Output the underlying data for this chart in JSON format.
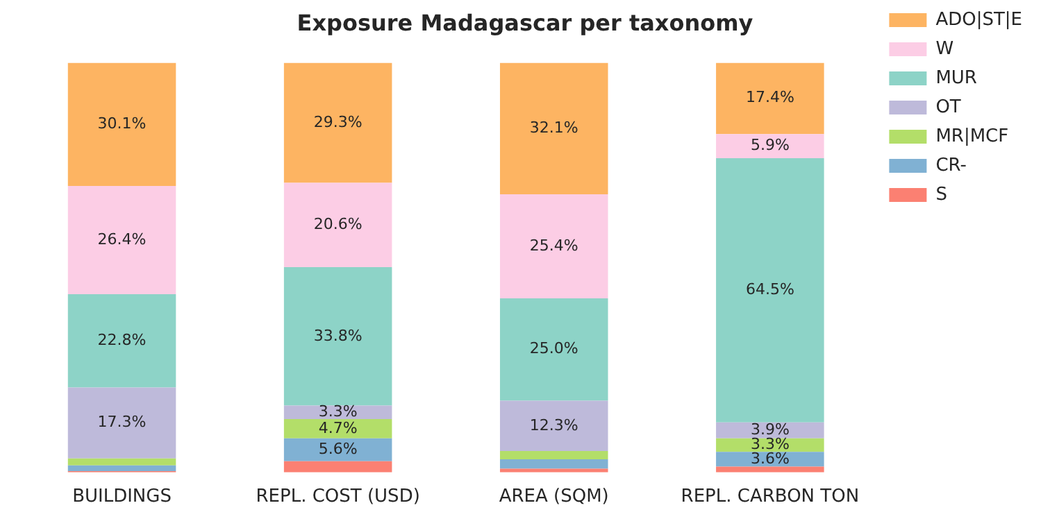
{
  "chart_data": {
    "type": "bar",
    "title": "Exposure Madagascar per taxonomy",
    "stacked": true,
    "legend": "top right",
    "tick_labels": "x",
    "grid": false,
    "ylim": [
      0,
      100
    ],
    "categories": [
      "BUILDINGS",
      "REPL. COST (USD)",
      "AREA (SQM)",
      "REPL. CARBON TON"
    ],
    "series": [
      {
        "name": "S",
        "color": "#fb8072",
        "values": [
          0.3,
          2.7,
          0.9,
          1.4
        ],
        "value_labels": [
          null,
          null,
          null,
          null
        ]
      },
      {
        "name": "CR-",
        "color": "#80b1d3",
        "values": [
          1.4,
          5.6,
          2.3,
          3.6
        ],
        "value_labels": [
          null,
          "5.6%",
          null,
          "3.6%"
        ]
      },
      {
        "name": "MR|MCF",
        "color": "#b3de69",
        "values": [
          1.7,
          4.7,
          2.0,
          3.3
        ],
        "value_labels": [
          null,
          "4.7%",
          null,
          "3.3%"
        ]
      },
      {
        "name": "OT",
        "color": "#bebada",
        "values": [
          17.3,
          3.3,
          12.3,
          3.9
        ],
        "value_labels": [
          "17.3%",
          "3.3%",
          "12.3%",
          "3.9%"
        ]
      },
      {
        "name": "MUR",
        "color": "#8dd3c7",
        "values": [
          22.8,
          33.8,
          25.0,
          64.5
        ],
        "value_labels": [
          "22.8%",
          "33.8%",
          "25.0%",
          "64.5%"
        ]
      },
      {
        "name": "W",
        "color": "#fccde5",
        "values": [
          26.4,
          20.6,
          25.4,
          5.9
        ],
        "value_labels": [
          "26.4%",
          "20.6%",
          "25.4%",
          "5.9%"
        ]
      },
      {
        "name": "ADO|ST|E",
        "color": "#fdb462",
        "values": [
          30.1,
          29.3,
          32.1,
          17.4
        ],
        "value_labels": [
          "30.1%",
          "29.3%",
          "32.1%",
          "17.4%"
        ]
      }
    ]
  }
}
